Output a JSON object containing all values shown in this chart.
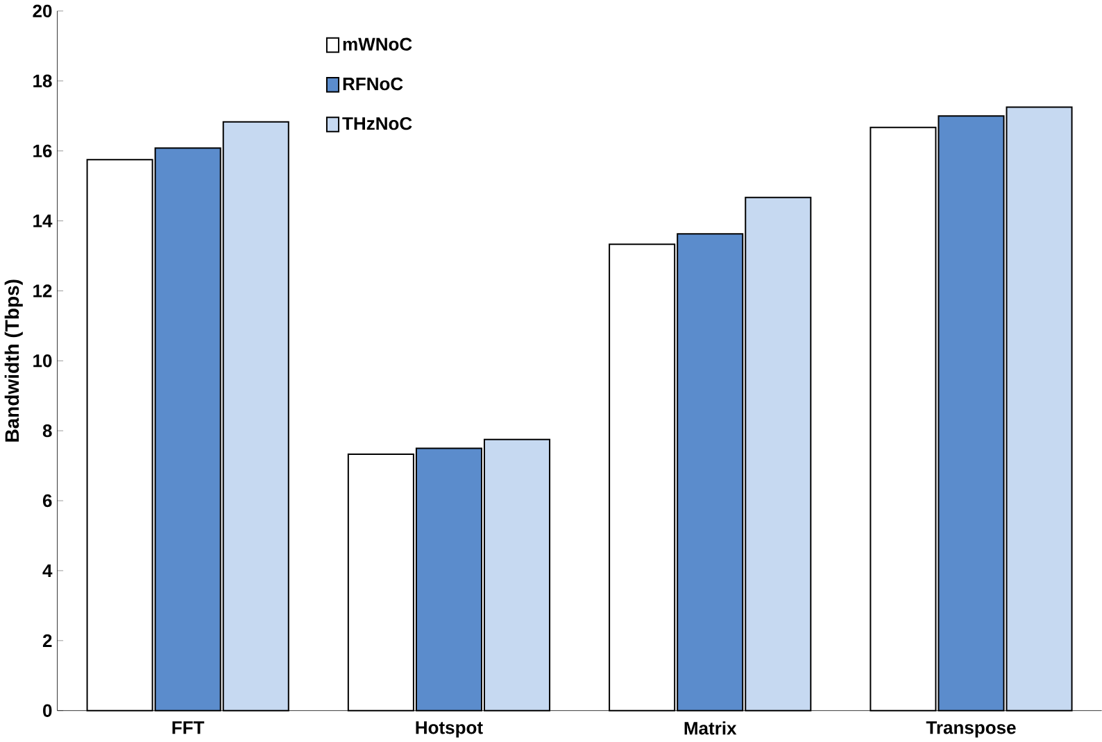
{
  "chart_data": {
    "type": "bar",
    "ylabel": "Bandwidth (Tbps)",
    "categories": [
      "FFT",
      "Hotspot",
      "Matrix",
      "Transpose"
    ],
    "series": [
      {
        "name": "mWNoC",
        "color": "#ffffff",
        "values": [
          15.75,
          7.33,
          13.33,
          16.67
        ]
      },
      {
        "name": "RFNoC",
        "color": "#5b8ccc",
        "values": [
          16.08,
          7.5,
          13.63,
          17.0
        ]
      },
      {
        "name": "THzNoC",
        "color": "#c6d9f1",
        "values": [
          16.83,
          7.75,
          14.67,
          17.25
        ]
      }
    ],
    "ylim": [
      0,
      20
    ],
    "yticks": [
      0,
      2,
      4,
      6,
      8,
      10,
      12,
      14,
      16,
      18,
      20
    ],
    "legend": "top",
    "grid": false
  }
}
